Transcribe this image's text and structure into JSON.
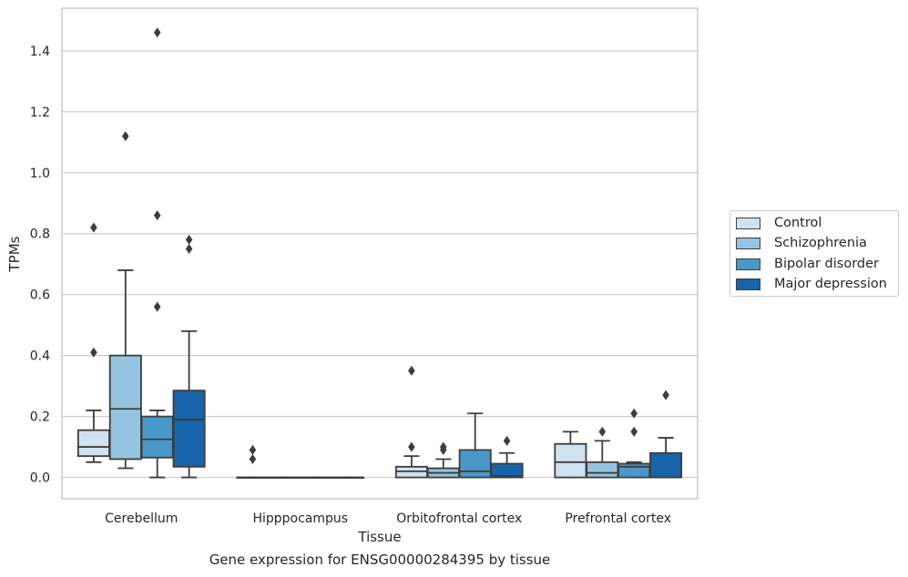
{
  "chart_data": {
    "type": "box",
    "title": "",
    "xlabel": "Tissue",
    "ylabel": "TPMs",
    "caption": "Gene expression for ENSG00000284395 by tissue",
    "ylim": [
      -0.07,
      1.54
    ],
    "yticks": [
      0.0,
      0.2,
      0.4,
      0.6,
      0.8,
      1.0,
      1.2,
      1.4
    ],
    "ytick_labels": [
      "0.0",
      "0.2",
      "0.4",
      "0.6",
      "0.8",
      "1.0",
      "1.2",
      "1.4"
    ],
    "grid": true,
    "legend_position": "right",
    "categories": [
      "Cerebellum",
      "Hipppocampus",
      "Orbitofrontal cortex",
      "Prefrontal cortex"
    ],
    "series": [
      {
        "name": "Control",
        "color": "#d0e1f2",
        "boxes": [
          {
            "whislo": 0.05,
            "q1": 0.07,
            "med": 0.1,
            "q3": 0.155,
            "whishi": 0.22,
            "fliers": [
              0.41,
              0.82
            ]
          },
          {
            "whislo": 0.0,
            "q1": 0.0,
            "med": 0.0,
            "q3": 0.0,
            "whishi": 0.0,
            "fliers": [
              0.06,
              0.09
            ]
          },
          {
            "whislo": 0.0,
            "q1": 0.0,
            "med": 0.02,
            "q3": 0.035,
            "whishi": 0.07,
            "fliers": [
              0.1,
              0.35
            ]
          },
          {
            "whislo": 0.0,
            "q1": 0.0,
            "med": 0.05,
            "q3": 0.11,
            "whishi": 0.15,
            "fliers": []
          }
        ]
      },
      {
        "name": "Schizophrenia",
        "color": "#94c4df",
        "boxes": [
          {
            "whislo": 0.03,
            "q1": 0.06,
            "med": 0.225,
            "q3": 0.4,
            "whishi": 0.68,
            "fliers": [
              1.12
            ]
          },
          {
            "whislo": 0.0,
            "q1": 0.0,
            "med": 0.0,
            "q3": 0.0,
            "whishi": 0.0,
            "fliers": []
          },
          {
            "whislo": 0.0,
            "q1": 0.0,
            "med": 0.015,
            "q3": 0.03,
            "whishi": 0.06,
            "fliers": [
              0.09,
              0.1
            ]
          },
          {
            "whislo": 0.0,
            "q1": 0.0,
            "med": 0.015,
            "q3": 0.05,
            "whishi": 0.12,
            "fliers": [
              0.15
            ]
          }
        ]
      },
      {
        "name": "Bipolar disorder",
        "color": "#4a98c9",
        "boxes": [
          {
            "whislo": 0.0,
            "q1": 0.065,
            "med": 0.125,
            "q3": 0.2,
            "whishi": 0.22,
            "fliers": [
              0.56,
              0.86,
              1.46
            ]
          },
          {
            "whislo": 0.0,
            "q1": 0.0,
            "med": 0.0,
            "q3": 0.0,
            "whishi": 0.0,
            "fliers": []
          },
          {
            "whislo": 0.0,
            "q1": 0.0,
            "med": 0.02,
            "q3": 0.09,
            "whishi": 0.21,
            "fliers": []
          },
          {
            "whislo": 0.0,
            "q1": 0.0,
            "med": 0.035,
            "q3": 0.045,
            "whishi": 0.05,
            "fliers": [
              0.15,
              0.21
            ]
          }
        ]
      },
      {
        "name": "Major depression",
        "color": "#1764ab",
        "boxes": [
          {
            "whislo": 0.0,
            "q1": 0.035,
            "med": 0.19,
            "q3": 0.285,
            "whishi": 0.48,
            "fliers": [
              0.75,
              0.78
            ]
          },
          {
            "whislo": 0.0,
            "q1": 0.0,
            "med": 0.0,
            "q3": 0.0,
            "whishi": 0.0,
            "fliers": []
          },
          {
            "whislo": 0.0,
            "q1": 0.0,
            "med": 0.005,
            "q3": 0.045,
            "whishi": 0.08,
            "fliers": [
              0.12
            ]
          },
          {
            "whislo": 0.0,
            "q1": 0.0,
            "med": 0.0,
            "q3": 0.08,
            "whishi": 0.13,
            "fliers": [
              0.27
            ]
          }
        ]
      }
    ]
  }
}
